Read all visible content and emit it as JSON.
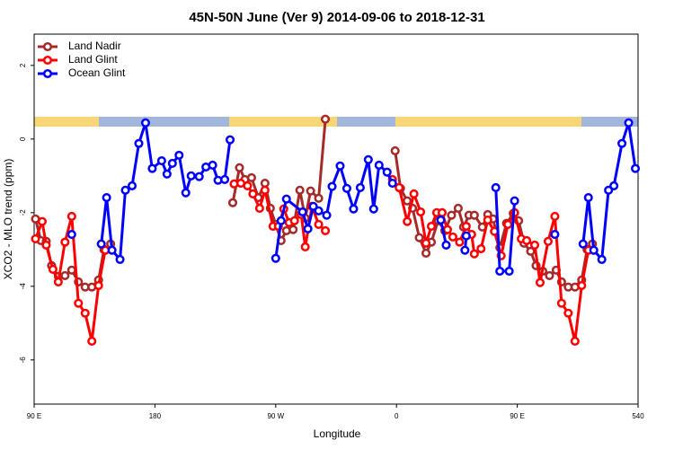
{
  "chart_data": {
    "type": "line",
    "title": "45N-50N June (Ver 9)   2014-09-06 to 2018-12-31",
    "x_label": "Longitude",
    "y_label": "XCO2 - MLO trend (ppm)",
    "xlim": [
      90,
      540
    ],
    "ylim": [
      -7.2,
      2.85
    ],
    "xticks": [
      {
        "value": 90,
        "label": "90 E"
      },
      180,
      {
        "value": 270,
        "label": "90 W"
      },
      {
        "value": 360,
        "label": "0"
      },
      {
        "value": 450,
        "label": "90 E"
      },
      540
    ],
    "yticks": [
      -6,
      -4,
      -2,
      0,
      2
    ],
    "legend": "top-left",
    "series": [
      {
        "name": "Land Nadir",
        "color": "#a52a2a",
        "x": [
          91,
          95,
          99,
          103,
          108,
          113,
          118,
          123,
          128,
          133,
          138,
          142,
          147,
          null,
          238,
          243,
          247,
          252,
          257,
          262,
          266,
          270,
          274,
          278,
          283,
          288,
          292,
          296,
          302,
          307,
          null,
          359,
          363,
          368,
          372,
          377,
          382,
          386,
          391,
          396,
          401,
          406,
          410,
          414,
          418,
          424,
          428,
          432,
          437,
          442,
          447,
          451,
          455,
          460,
          464,
          469,
          474,
          479,
          483,
          488,
          493,
          498,
          502,
          506
        ],
        "values": [
          -2.17,
          -2.76,
          -2.78,
          -3.44,
          -3.73,
          -3.71,
          -3.56,
          -3.88,
          -4.02,
          -4.02,
          -3.83,
          -3.0,
          -2.85,
          null,
          -1.73,
          -0.78,
          -1.1,
          -1.05,
          -1.59,
          -1.2,
          -1.88,
          -2.32,
          -2.76,
          -2.49,
          -2.46,
          -1.39,
          -2.15,
          -1.41,
          -1.61,
          0.54,
          null,
          -0.32,
          -1.34,
          -1.68,
          -1.88,
          -2.68,
          -3.1,
          -2.8,
          -2.22,
          -2.49,
          -2.07,
          -1.88,
          -2.39,
          -2.07,
          -2.07,
          -2.39,
          -2.05,
          -2.17,
          -2.95,
          -2.29,
          -2.02,
          -2.22,
          -2.83,
          -3.05,
          -3.44,
          -3.59,
          -3.71,
          -3.56,
          -3.88,
          -4.02,
          -4.02,
          -3.83,
          -3.0,
          -2.85
        ]
      },
      {
        "name": "Land Glint",
        "color": "#ff0000",
        "x": [
          91,
          96,
          99,
          104,
          108,
          113,
          118,
          123,
          128,
          133,
          138,
          143,
          null,
          239,
          244,
          249,
          253,
          258,
          262,
          268,
          272,
          276,
          280,
          284,
          289,
          292,
          297,
          302,
          307,
          null,
          357,
          362,
          368,
          373,
          378,
          382,
          386,
          390,
          394,
          398,
          402,
          407,
          412,
          416,
          418,
          423,
          428,
          433,
          438,
          443,
          448,
          453,
          457,
          463,
          467,
          473,
          478,
          483,
          488,
          493,
          498,
          503
        ],
        "values": [
          -2.71,
          -2.24,
          -2.88,
          -3.54,
          -3.88,
          -2.8,
          -2.1,
          -4.46,
          -4.73,
          -5.49,
          -3.98,
          -3.02,
          null,
          -1.22,
          -1.2,
          -1.27,
          -1.49,
          -1.88,
          -1.39,
          -2.37,
          -2.37,
          -1.9,
          -2.27,
          -2.22,
          -2.05,
          -2.93,
          -1.83,
          -2.32,
          -2.49,
          null,
          -1.1,
          -1.32,
          -2.24,
          -1.49,
          -1.98,
          -2.83,
          -2.37,
          -2.0,
          -2.0,
          -2.46,
          -2.66,
          -2.8,
          -2.37,
          -2.59,
          -3.12,
          -2.98,
          -2.2,
          -2.51,
          -3.17,
          -2.32,
          -2.0,
          -2.71,
          -2.76,
          -2.88,
          -3.9,
          -2.78,
          -2.1,
          -4.46,
          -4.73,
          -5.49,
          -3.98,
          -3.02
        ]
      },
      {
        "name": "Ocean Glint",
        "color": "#0000ff",
        "x": [
          118,
          null,
          140,
          144,
          148,
          154,
          158,
          163,
          168,
          173,
          178,
          185,
          189,
          193,
          198,
          203,
          207,
          213,
          218,
          223,
          227,
          232,
          236,
          null,
          270,
          274,
          278,
          290,
          294,
          298,
          302,
          308,
          312,
          318,
          323,
          328,
          333,
          339,
          343,
          347,
          353,
          357,
          null,
          393,
          397,
          null,
          411,
          412,
          null,
          434,
          437,
          444,
          448,
          null,
          478,
          null,
          499,
          503,
          507,
          513,
          518,
          522,
          528,
          533,
          538
        ],
        "values": [
          -2.59,
          null,
          -2.85,
          -1.59,
          -3.02,
          -3.27,
          -1.39,
          -1.27,
          -0.12,
          0.44,
          -0.8,
          -0.59,
          -0.95,
          -0.66,
          -0.44,
          -1.46,
          -1.0,
          -1.02,
          -0.76,
          -0.71,
          -1.12,
          -1.1,
          -0.02,
          null,
          -3.24,
          -2.22,
          -1.63,
          -1.98,
          -2.44,
          -1.83,
          -1.95,
          -2.07,
          -1.29,
          -0.73,
          -1.34,
          -1.9,
          -1.32,
          -0.56,
          -1.9,
          -0.71,
          -0.9,
          -1.2,
          null,
          -2.2,
          -2.88,
          null,
          -3.02,
          -2.63,
          null,
          -1.32,
          -3.59,
          -3.59,
          -1.68,
          null,
          -2.59,
          null,
          -2.85,
          -1.59,
          -3.02,
          -3.27,
          -1.39,
          -1.27,
          -0.12,
          0.44,
          -0.8
        ]
      }
    ]
  }
}
